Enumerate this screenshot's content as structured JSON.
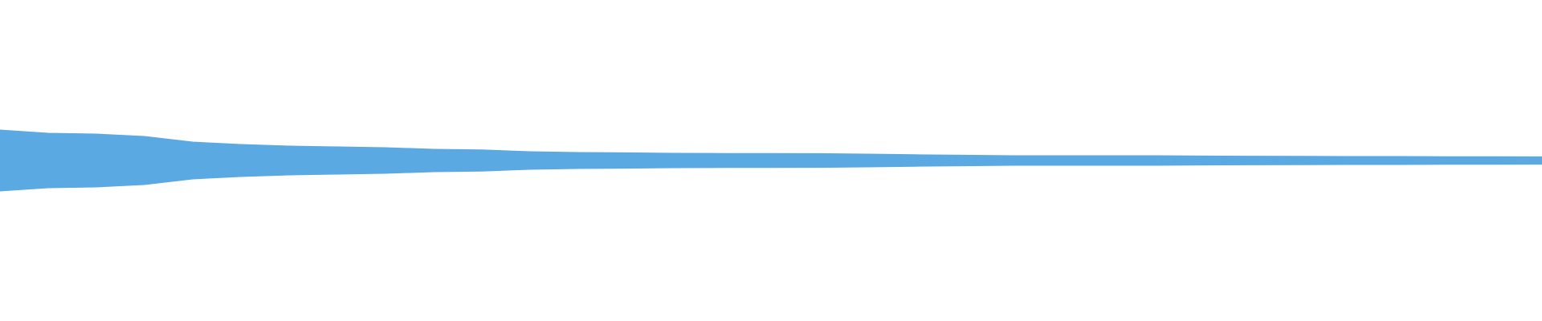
{
  "chart_data": {
    "type": "waveform",
    "color": "#5aa9e2",
    "ylim": [
      -1,
      1
    ],
    "values": [
      0.19,
      0.17,
      0.165,
      0.15,
      0.115,
      0.1,
      0.09,
      0.085,
      0.08,
      0.07,
      0.066,
      0.055,
      0.05,
      0.048,
      0.045,
      0.044,
      0.044,
      0.043,
      0.04,
      0.036,
      0.033,
      0.03,
      0.03,
      0.03,
      0.03,
      0.028,
      0.027,
      0.026,
      0.025,
      0.025,
      0.024,
      0.024,
      0.023
    ]
  }
}
